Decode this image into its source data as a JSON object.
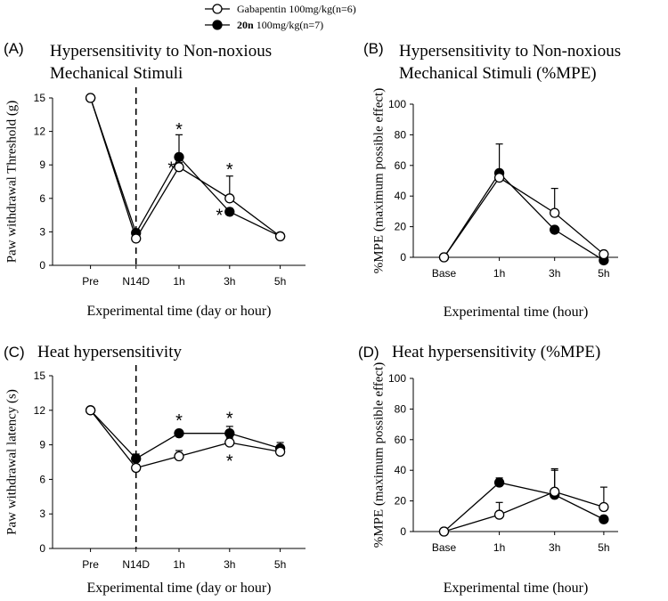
{
  "legend": {
    "entries": [
      {
        "series_index": 0,
        "marker": "open-circle",
        "name": "Gabapentin",
        "bold": false,
        "dose": " 100mg/kg(n=6)"
      },
      {
        "series_index": 1,
        "marker": "filled-circle",
        "name": "20n",
        "bold": true,
        "dose": " 100mg/kg(n=7)"
      }
    ]
  },
  "colors": {
    "line": "#000000",
    "open_fill": "#ffffff",
    "filled": "#000000",
    "axis": "#000000"
  },
  "chart_data": [
    {
      "id": "A",
      "panel_label": "(A)",
      "type": "line",
      "title": [
        "Hypersensitivity to Non-noxious",
        "Mechanical Stimuli"
      ],
      "xlabel": "Experimental time (day or hour)",
      "ylabel": "Paw withdrawal Threshold (g)",
      "categories": [
        "Pre",
        "N14D",
        "1h",
        "3h",
        "5h"
      ],
      "ylim": [
        0,
        15
      ],
      "yticks": [
        0,
        3,
        6,
        9,
        12,
        15
      ],
      "dashed_after_index": 1,
      "series": [
        {
          "name": "Gabapentin",
          "values": [
            15,
            2.4,
            8.8,
            6.0,
            2.6
          ],
          "err": [
            0,
            0.3,
            0.4,
            2.0,
            0.2
          ],
          "open": true
        },
        {
          "name": "20n",
          "values": [
            15,
            2.9,
            9.7,
            4.8,
            2.6
          ],
          "err": [
            0,
            0.3,
            2.0,
            0.3,
            0.2
          ],
          "open": false
        }
      ],
      "annotations": [
        {
          "text": "*",
          "x": 2,
          "y": 12.3
        },
        {
          "text": "*",
          "x": 1.82,
          "y": 8.8
        },
        {
          "text": "*",
          "x": 3,
          "y": 8.7
        },
        {
          "text": "*",
          "x": 2.8,
          "y": 4.6
        }
      ]
    },
    {
      "id": "B",
      "panel_label": "(B)",
      "type": "line",
      "title": [
        "Hypersensitivity to Non-noxious",
        "Mechanical Stimuli (%MPE)"
      ],
      "xlabel": "Experimental time (hour)",
      "ylabel": "%MPE (maximum possible effect)",
      "categories": [
        "Base",
        "1h",
        "3h",
        "5h"
      ],
      "ylim": [
        0,
        100
      ],
      "yticks": [
        0,
        20,
        40,
        60,
        80,
        100
      ],
      "series": [
        {
          "name": "Gabapentin",
          "values": [
            0,
            52,
            29,
            2
          ],
          "err": [
            0,
            3,
            16,
            2
          ],
          "open": true
        },
        {
          "name": "20n",
          "values": [
            0,
            55,
            18,
            -2
          ],
          "err": [
            0,
            19,
            2,
            1
          ],
          "open": false
        }
      ],
      "annotations": []
    },
    {
      "id": "C",
      "panel_label": "(C)",
      "type": "line",
      "title": [
        "Heat hypersensitivity"
      ],
      "xlabel": "Experimental time (day or hour)",
      "ylabel": "Paw withdrawal latency (s)",
      "categories": [
        "Pre",
        "N14D",
        "1h",
        "3h",
        "5h"
      ],
      "ylim": [
        0,
        15
      ],
      "yticks": [
        0,
        3,
        6,
        9,
        12,
        15
      ],
      "dashed_after_index": 1,
      "series": [
        {
          "name": "Gabapentin",
          "values": [
            12,
            7.0,
            8.0,
            9.2,
            8.4
          ],
          "err": [
            0,
            0.3,
            0.5,
            0.4,
            0.3
          ],
          "open": true
        },
        {
          "name": "20n",
          "values": [
            12,
            7.8,
            10.0,
            10.0,
            8.7
          ],
          "err": [
            0,
            0.4,
            0.2,
            0.6,
            0.5
          ],
          "open": false
        }
      ],
      "annotations": [
        {
          "text": "*",
          "x": 2,
          "y": 11.2
        },
        {
          "text": "*",
          "x": 3,
          "y": 11.4
        },
        {
          "text": "*",
          "x": 3,
          "y": 7.7
        }
      ]
    },
    {
      "id": "D",
      "panel_label": "(D)",
      "type": "line",
      "title": [
        "Heat hypersensitivity (%MPE)"
      ],
      "xlabel": "Experimental time (hour)",
      "ylabel": "%MPE (maximum possible effect)",
      "categories": [
        "Base",
        "1h",
        "3h",
        "5h"
      ],
      "ylim": [
        0,
        100
      ],
      "yticks": [
        0,
        20,
        40,
        60,
        80,
        100
      ],
      "series": [
        {
          "name": "Gabapentin",
          "values": [
            0,
            11,
            26,
            16
          ],
          "err": [
            0,
            8,
            15,
            13
          ],
          "open": true
        },
        {
          "name": "20n",
          "values": [
            0,
            32,
            24,
            8
          ],
          "err": [
            0,
            3,
            16,
            2
          ],
          "open": false
        }
      ],
      "annotations": []
    }
  ]
}
